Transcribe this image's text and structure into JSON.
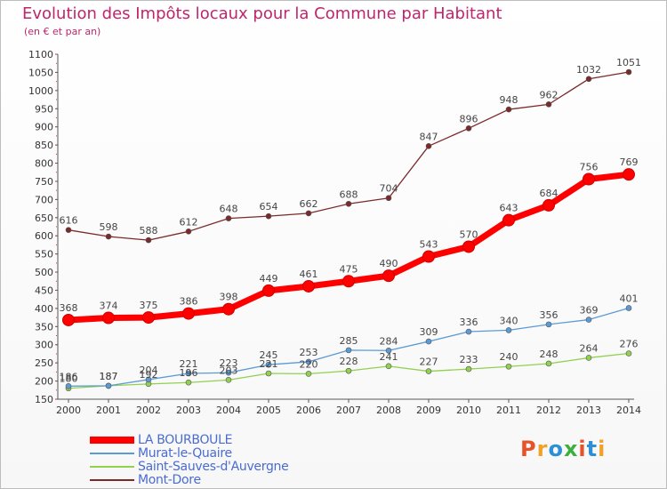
{
  "header": {
    "title": "Evolution des Impôts locaux pour la Commune par Habitant",
    "subtitle": "(en € et par an)"
  },
  "logo": {
    "text": "Proxiti",
    "colors": [
      "#e8522b",
      "#f1a126",
      "#2d8fd5",
      "#3cb03c",
      "#e8522b",
      "#2d8fd5",
      "#f1a126"
    ]
  },
  "chart_data": {
    "type": "line",
    "title": "Evolution des Impôts locaux pour la Commune par Habitant",
    "subtitle": "(en € et par an)",
    "x": [
      "2000",
      "2001",
      "2002",
      "2003",
      "2004",
      "2005",
      "2006",
      "2007",
      "2008",
      "2009",
      "2010",
      "2011",
      "2012",
      "2013",
      "2014"
    ],
    "ylim": [
      150,
      1100
    ],
    "yticks": [
      150,
      200,
      250,
      300,
      350,
      400,
      450,
      500,
      550,
      600,
      650,
      700,
      750,
      800,
      850,
      900,
      950,
      1000,
      1050,
      1100
    ],
    "grid": false,
    "legend": "bottom-left",
    "series": [
      {
        "name": "LA BOURBOULE",
        "color": "#ff0000",
        "values": [
          368,
          374,
          375,
          386,
          398,
          449,
          461,
          475,
          490,
          543,
          570,
          643,
          684,
          756,
          769
        ]
      },
      {
        "name": "Murat-le-Quaire",
        "color": "#5b9bd5",
        "values": [
          186,
          187,
          204,
          221,
          223,
          245,
          253,
          285,
          284,
          309,
          336,
          340,
          356,
          369,
          401
        ]
      },
      {
        "name": "Saint-Sauves-d'Auvergne",
        "color": "#92d050",
        "values": [
          180,
          187,
          192,
          196,
          203,
          221,
          220,
          228,
          241,
          227,
          233,
          240,
          248,
          264,
          276
        ]
      },
      {
        "name": "Mont-Dore",
        "color": "#7b2a2a",
        "values": [
          616,
          598,
          588,
          612,
          648,
          654,
          662,
          688,
          704,
          847,
          896,
          948,
          962,
          1032,
          1051
        ]
      }
    ],
    "point_labels": [
      [
        "368",
        "374",
        "375",
        "386",
        "398",
        "449",
        "461",
        "475",
        "490",
        "543",
        "570",
        "643",
        "684",
        "756",
        "769"
      ],
      [
        "186",
        "187",
        "204",
        "221",
        "223",
        "245",
        "253",
        "285",
        "284",
        "309",
        "336",
        "340",
        "356",
        "369",
        "401"
      ],
      [
        "180",
        "187",
        "192",
        "196",
        "203",
        "221",
        "220",
        "228",
        "241",
        "227",
        "233",
        "240",
        "248",
        "264",
        "276"
      ],
      [
        "616",
        "598",
        "588",
        "612",
        "648",
        "654",
        "662",
        "688",
        "704",
        "847",
        "896",
        "948",
        "962",
        "1032",
        "1051"
      ]
    ]
  }
}
